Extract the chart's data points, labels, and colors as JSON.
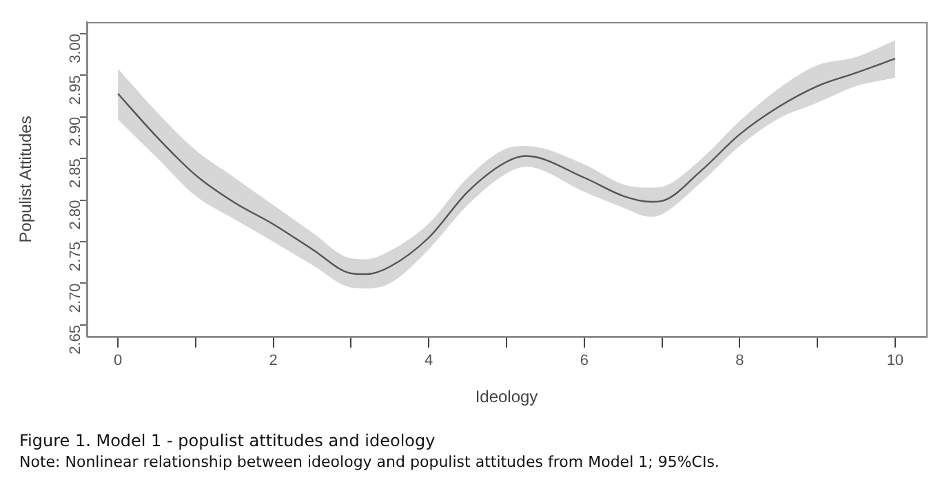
{
  "chart_data": {
    "type": "line",
    "xlabel": "Ideology",
    "ylabel": "Populist Attitudes",
    "annotations": [
      "Figure 1.  Model 1 - populist attitudes and ideology",
      "Note: Nonlinear relationship between ideology and populist attitudes from Model 1; 95%CIs."
    ],
    "x": [
      0,
      0.5,
      1,
      1.5,
      2,
      2.5,
      3,
      3.2,
      3.5,
      4,
      4.5,
      5,
      5.25,
      6,
      6.5,
      6.85,
      7,
      7.5,
      8,
      8.5,
      9,
      9.5,
      10
    ],
    "series": [
      {
        "color": "#555555",
        "values": [
          2.928,
          2.876,
          2.83,
          2.797,
          2.771,
          2.741,
          2.712,
          2.711,
          2.72,
          2.755,
          2.81,
          2.846,
          2.853,
          2.827,
          2.805,
          2.798,
          2.799,
          2.835,
          2.879,
          2.912,
          2.937,
          2.953,
          2.97
        ],
        "lower": [
          2.897,
          2.851,
          2.805,
          2.777,
          2.75,
          2.722,
          2.695,
          2.694,
          2.7,
          2.741,
          2.794,
          2.832,
          2.84,
          2.81,
          2.791,
          2.78,
          2.783,
          2.821,
          2.865,
          2.898,
          2.917,
          2.937,
          2.947
        ],
        "upper": [
          2.958,
          2.906,
          2.86,
          2.827,
          2.794,
          2.761,
          2.73,
          2.729,
          2.739,
          2.772,
          2.827,
          2.862,
          2.865,
          2.843,
          2.819,
          2.815,
          2.816,
          2.849,
          2.895,
          2.934,
          2.962,
          2.972,
          2.992
        ]
      }
    ],
    "xlim": [
      -0.4,
      10.4
    ],
    "xticks": [
      0,
      {
        "value": 1,
        "label": null
      },
      2,
      {
        "value": 3,
        "label": null
      },
      4,
      {
        "value": 5,
        "label": null
      },
      6,
      {
        "value": 7,
        "label": null
      },
      8,
      {
        "value": 9,
        "label": null
      },
      10
    ],
    "ylim": [
      2.636,
      3.014
    ],
    "yticks": [
      2.65,
      {
        "value": 2.7,
        "label": "2.70"
      },
      2.75,
      {
        "value": 2.8,
        "label": "2.80"
      },
      2.85,
      {
        "value": 2.9,
        "label": "2.90"
      },
      2.95,
      {
        "value": 3,
        "label": "3.00"
      }
    ],
    "grid": false,
    "legend": false,
    "marker": "none",
    "line_style": "solid"
  }
}
